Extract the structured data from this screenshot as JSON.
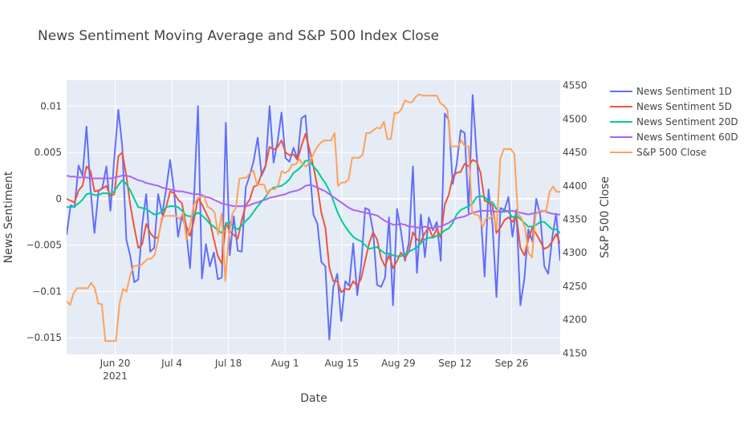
{
  "chart_data": {
    "type": "line",
    "title": "News Sentiment Moving Average and S&P 500 Index Close",
    "xlabel": "Date",
    "ylabel": "News Sentiment",
    "y2label": "S&P 500 Close",
    "x_range": [
      "2021-06-08",
      "2021-10-08"
    ],
    "ylim": [
      -0.0168,
      0.0128
    ],
    "y2lim": [
      4148,
      4558
    ],
    "x_ticks": [
      {
        "date": "2021-06-20",
        "label": "Jun 20",
        "sub": "2021"
      },
      {
        "date": "2021-07-04",
        "label": "Jul 4",
        "sub": ""
      },
      {
        "date": "2021-07-18",
        "label": "Jul 18",
        "sub": ""
      },
      {
        "date": "2021-08-01",
        "label": "Aug 1",
        "sub": ""
      },
      {
        "date": "2021-08-15",
        "label": "Aug 15",
        "sub": ""
      },
      {
        "date": "2021-08-29",
        "label": "Aug 29",
        "sub": ""
      },
      {
        "date": "2021-09-12",
        "label": "Sep 12",
        "sub": ""
      },
      {
        "date": "2021-09-26",
        "label": "Sep 26",
        "sub": ""
      }
    ],
    "y_ticks": [
      {
        "value": 0.01,
        "label": "0.01"
      },
      {
        "value": 0.005,
        "label": "0.005"
      },
      {
        "value": 0,
        "label": "0"
      },
      {
        "value": -0.005,
        "label": "−0.005"
      },
      {
        "value": -0.01,
        "label": "−0.01"
      },
      {
        "value": -0.015,
        "label": "−0.015"
      }
    ],
    "y2_ticks": [
      {
        "value": 4550,
        "label": "4550"
      },
      {
        "value": 4500,
        "label": "4500"
      },
      {
        "value": 4450,
        "label": "4450"
      },
      {
        "value": 4400,
        "label": "4400"
      },
      {
        "value": 4350,
        "label": "4350"
      },
      {
        "value": 4300,
        "label": "4300"
      },
      {
        "value": 4250,
        "label": "4250"
      },
      {
        "value": 4200,
        "label": "4200"
      },
      {
        "value": 4150,
        "label": "4150"
      }
    ],
    "grid": true,
    "legend_position": "right",
    "start_date": "2021-06-08",
    "series": [
      {
        "name": "News Sentiment 1D",
        "color": "#636efa",
        "axis": "y",
        "values": [
          -0.0039,
          -0.0007,
          -0.0009,
          0.0036,
          0.0025,
          0.0078,
          0.001,
          -0.0037,
          0.0008,
          0.0012,
          0.0035,
          -0.0013,
          0.0045,
          0.0096,
          0.0056,
          -0.0044,
          -0.0062,
          -0.009,
          -0.0087,
          -0.0028,
          0.0005,
          -0.0057,
          -0.0053,
          0.0005,
          -0.0017,
          0.001,
          0.0042,
          0.0008,
          -0.0041,
          -0.0018,
          -0.0033,
          -0.0075,
          0.0,
          0.01,
          -0.0086,
          -0.0049,
          -0.0073,
          -0.0058,
          -0.0087,
          -0.0085,
          0.0082,
          -0.0061,
          -0.0019,
          -0.0056,
          -0.0057,
          0.0012,
          0.0025,
          0.0041,
          0.0066,
          0.0025,
          0.0035,
          0.01,
          0.0039,
          0.0062,
          0.0093,
          0.0044,
          0.004,
          0.0055,
          0.0043,
          0.0087,
          0.009,
          0.0037,
          -0.0017,
          -0.0027,
          -0.0068,
          -0.0073,
          -0.0152,
          -0.0095,
          -0.0081,
          -0.0132,
          -0.0089,
          -0.0094,
          -0.0048,
          -0.0104,
          -0.0072,
          -0.001,
          -0.0012,
          -0.0035,
          -0.0093,
          -0.0095,
          -0.0085,
          -0.002,
          -0.0115,
          -0.0011,
          -0.0035,
          -0.0067,
          -0.0047,
          0.0035,
          -0.008,
          -0.0017,
          -0.0063,
          -0.002,
          -0.0034,
          -0.0025,
          -0.0067,
          0.0092,
          0.0085,
          0.0016,
          0.0037,
          0.0074,
          0.0071,
          -0.0015,
          0.0112,
          0.0049,
          -0.0012,
          -0.0084,
          0.001,
          -0.0028,
          -0.0106,
          -0.001,
          -0.0012,
          0.0002,
          -0.0041,
          -0.0012,
          -0.0115,
          -0.0086,
          -0.0033,
          -0.0046,
          0.0,
          -0.0018,
          -0.0073,
          -0.0081,
          -0.0042,
          -0.0016,
          -0.0067
        ]
      },
      {
        "name": "News Sentiment 5D",
        "color": "#ef553b",
        "axis": "y",
        "values": [
          0.0,
          -0.0002,
          -0.0004,
          0.0009,
          0.0014,
          0.0035,
          0.003,
          0.0008,
          0.0009,
          0.0011,
          0.0014,
          0.0003,
          0.0005,
          0.0046,
          0.005,
          0.0025,
          -0.0007,
          -0.0031,
          -0.0053,
          -0.0049,
          -0.0027,
          -0.0037,
          -0.0042,
          -0.0042,
          -0.0021,
          -0.0009,
          0.0008,
          0.0006,
          -0.0001,
          -0.0005,
          -0.0029,
          -0.004,
          -0.0023,
          0.0001,
          -0.0006,
          -0.0015,
          -0.0024,
          -0.0044,
          -0.0062,
          -0.007,
          -0.0026,
          -0.0035,
          -0.0039,
          -0.0043,
          -0.0023,
          -0.0007,
          -0.0001,
          0.0013,
          0.0015,
          0.0027,
          0.0036,
          0.0056,
          0.0053,
          0.0056,
          0.0063,
          0.005,
          0.0047,
          0.0048,
          0.0042,
          0.0057,
          0.007,
          0.0054,
          0.0035,
          0.0013,
          -0.0015,
          -0.0031,
          -0.0074,
          -0.0089,
          -0.0089,
          -0.0101,
          -0.0097,
          -0.0098,
          -0.0089,
          -0.0094,
          -0.0086,
          -0.0067,
          -0.0048,
          -0.0036,
          -0.0044,
          -0.0064,
          -0.0073,
          -0.0061,
          -0.0075,
          -0.0067,
          -0.0058,
          -0.0064,
          -0.0057,
          -0.0036,
          -0.0044,
          -0.0046,
          -0.0037,
          -0.0031,
          -0.0042,
          -0.0032,
          -0.0042,
          -0.0006,
          0.0004,
          0.0024,
          0.0028,
          0.0029,
          0.0038,
          0.0035,
          0.0042,
          0.004,
          0.0028,
          -0.0002,
          -0.0004,
          -0.0007,
          -0.0037,
          -0.0031,
          -0.0023,
          -0.002,
          -0.0025,
          -0.0018,
          -0.0053,
          -0.0061,
          -0.0044,
          -0.0031,
          -0.0038,
          -0.0046,
          -0.0054,
          -0.0052,
          -0.0046,
          -0.0038,
          -0.0048
        ]
      },
      {
        "name": "News Sentiment 20D",
        "color": "#00cc96",
        "axis": "y",
        "values": [
          -0.0009,
          -0.0009,
          -0.0008,
          -0.0005,
          -0.0001,
          0.0005,
          0.0006,
          0.0004,
          0.0004,
          0.0006,
          0.0006,
          0.0005,
          0.0008,
          0.0015,
          0.002,
          0.0016,
          0.0009,
          0.0,
          -0.0009,
          -0.001,
          -0.0011,
          -0.0014,
          -0.0017,
          -0.0016,
          -0.0014,
          -0.0009,
          -0.0008,
          -0.0008,
          -0.0009,
          -0.0013,
          -0.0018,
          -0.0019,
          -0.0018,
          -0.0015,
          -0.0018,
          -0.0022,
          -0.0027,
          -0.003,
          -0.0034,
          -0.0037,
          -0.0027,
          -0.0025,
          -0.0031,
          -0.0033,
          -0.0029,
          -0.0024,
          -0.002,
          -0.0014,
          -0.0008,
          -0.0003,
          0.0002,
          0.0009,
          0.0012,
          0.0013,
          0.0014,
          0.0017,
          0.0021,
          0.0028,
          0.0031,
          0.0035,
          0.0041,
          0.0041,
          0.0035,
          0.003,
          0.0023,
          0.0017,
          0.0009,
          -0.0002,
          -0.0014,
          -0.0023,
          -0.003,
          -0.0036,
          -0.0041,
          -0.0044,
          -0.0046,
          -0.005,
          -0.0054,
          -0.0053,
          -0.0052,
          -0.0056,
          -0.0059,
          -0.0059,
          -0.0061,
          -0.0062,
          -0.0062,
          -0.006,
          -0.0057,
          -0.0055,
          -0.0052,
          -0.0048,
          -0.0044,
          -0.0042,
          -0.0042,
          -0.004,
          -0.0038,
          -0.0034,
          -0.0032,
          -0.0026,
          -0.0017,
          -0.0012,
          -0.001,
          -0.0008,
          -0.0005,
          0.0002,
          0.0003,
          0.0002,
          -0.0003,
          -0.0004,
          -0.0011,
          -0.0015,
          -0.0012,
          -0.0014,
          -0.002,
          -0.0018,
          -0.0022,
          -0.0026,
          -0.003,
          -0.003,
          -0.0028,
          -0.0025,
          -0.0025,
          -0.0029,
          -0.0033,
          -0.0033,
          -0.0037
        ]
      },
      {
        "name": "News Sentiment 60D",
        "color": "#ab63fa",
        "axis": "y",
        "values": [
          0.0025,
          0.0024,
          0.0024,
          0.0023,
          0.0023,
          0.0023,
          0.0022,
          0.0022,
          0.0022,
          0.0022,
          0.0022,
          0.0022,
          0.0023,
          0.0024,
          0.0025,
          0.0025,
          0.0024,
          0.0022,
          0.002,
          0.0019,
          0.0017,
          0.0016,
          0.0015,
          0.0014,
          0.0012,
          0.0011,
          0.001,
          0.0009,
          0.0008,
          0.0008,
          0.0007,
          0.0006,
          0.0005,
          0.0005,
          0.0004,
          0.0002,
          0.0001,
          -0.0001,
          -0.0003,
          -0.0005,
          -0.0006,
          -0.0007,
          -0.0008,
          -0.0008,
          -0.0008,
          -0.0008,
          -0.0007,
          -0.0005,
          -0.0004,
          -0.0002,
          -0.0001,
          0.0001,
          0.0002,
          0.0003,
          0.0004,
          0.0005,
          0.0007,
          0.0008,
          0.0009,
          0.0011,
          0.0014,
          0.0015,
          0.0014,
          0.0012,
          0.001,
          0.0008,
          0.0005,
          0.0002,
          -0.0001,
          -0.0004,
          -0.0007,
          -0.001,
          -0.0012,
          -0.0013,
          -0.0014,
          -0.0015,
          -0.0016,
          -0.0017,
          -0.0018,
          -0.0021,
          -0.0024,
          -0.0026,
          -0.0028,
          -0.0028,
          -0.0027,
          -0.0028,
          -0.003,
          -0.003,
          -0.0031,
          -0.0031,
          -0.003,
          -0.0031,
          -0.0032,
          -0.003,
          -0.003,
          -0.0028,
          -0.0026,
          -0.0023,
          -0.0021,
          -0.002,
          -0.0019,
          -0.0017,
          -0.0015,
          -0.0014,
          -0.0013,
          -0.0013,
          -0.0013,
          -0.0013,
          -0.0014,
          -0.0014,
          -0.0014,
          -0.0013,
          -0.0013,
          -0.0014,
          -0.0015,
          -0.0016,
          -0.0017,
          -0.0016,
          -0.0015,
          -0.0014,
          -0.0013,
          -0.0015,
          -0.0016,
          -0.0017,
          -0.0017
        ]
      },
      {
        "name": "S&P 500 Close",
        "color": "#ffa15a",
        "axis": "y2",
        "values": [
          4228,
          4222,
          4240,
          4247,
          4247,
          4247,
          4247,
          4255,
          4247,
          4224,
          4223,
          4168,
          4168,
          4168,
          4168,
          4224,
          4246,
          4242,
          4266,
          4280,
          4281,
          4281,
          4286,
          4291,
          4291,
          4297,
          4320,
          4353,
          4355,
          4355,
          4355,
          4355,
          4350,
          4360,
          4320,
          4340,
          4370,
          4380,
          4384,
          4384,
          4369,
          4366,
          4360,
          4327,
          4359,
          4258,
          4323,
          4358,
          4367,
          4411,
          4412,
          4412,
          4419,
          4423,
          4402,
          4402,
          4402,
          4387,
          4395,
          4395,
          4401,
          4422,
          4419,
          4423,
          4432,
          4432,
          4440,
          4432,
          4429,
          4437,
          4447,
          4458,
          4464,
          4468,
          4468,
          4468,
          4479,
          4400,
          4405,
          4405,
          4410,
          4442,
          4442,
          4442,
          4447,
          4479,
          4479,
          4483,
          4487,
          4486,
          4496,
          4470,
          4470,
          4509,
          4509,
          4515,
          4528,
          4525,
          4525,
          4533,
          4537,
          4535,
          4535,
          4535,
          4535,
          4535,
          4524,
          4520,
          4514,
          4459,
          4459,
          4459,
          4468,
          4459,
          4459,
          4360,
          4357,
          4355,
          4338,
          4352,
          4351,
          4357,
          4335,
          4440,
          4455,
          4455,
          4455,
          4448,
          4358,
          4352,
          4338,
          4300,
          4293,
          4357,
          4363,
          4363,
          4361,
          4391,
          4399,
          4391,
          4391
        ]
      }
    ]
  }
}
